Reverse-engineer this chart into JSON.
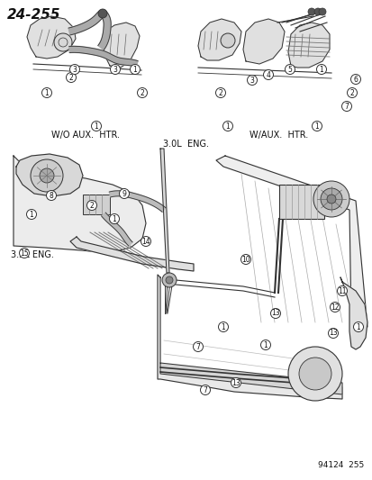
{
  "title": "24-255",
  "bg_color": "#ffffff",
  "fig_width": 4.14,
  "fig_height": 5.33,
  "dpi": 100,
  "labels": {
    "top_left_caption": "W/O AUX.  HTR.",
    "top_right_caption": "W/AUX.  HTR.",
    "middle_caption": "3.0L  ENG.",
    "bottom_left_caption": "3.3L ENG.",
    "bottom_right_stamp": "94124  255"
  },
  "title_fontsize": 11,
  "title_fontweight": "bold",
  "caption_fontsize": 7.0,
  "stamp_fontsize": 6.5,
  "text_color": "#111111",
  "line_color": "#333333",
  "callout_r": 5.5,
  "callout_fontsize": 5.5,
  "top_left_callouts": [
    [
      150,
      456,
      "1"
    ],
    [
      52,
      430,
      "1"
    ],
    [
      107,
      393,
      "1"
    ],
    [
      79,
      447,
      "2"
    ],
    [
      158,
      430,
      "2"
    ],
    [
      83,
      456,
      "3"
    ],
    [
      128,
      456,
      "3"
    ]
  ],
  "top_right_callouts": [
    [
      357,
      456,
      "1"
    ],
    [
      352,
      393,
      "1"
    ],
    [
      253,
      393,
      "1"
    ],
    [
      391,
      430,
      "2"
    ],
    [
      245,
      430,
      "2"
    ],
    [
      280,
      444,
      "3"
    ],
    [
      298,
      450,
      "4"
    ],
    [
      322,
      456,
      "5"
    ],
    [
      395,
      445,
      "6"
    ],
    [
      385,
      415,
      "7"
    ]
  ],
  "bottom_callouts": [
    [
      35,
      295,
      "1"
    ],
    [
      127,
      290,
      "1"
    ],
    [
      248,
      170,
      "1"
    ],
    [
      295,
      150,
      "1"
    ],
    [
      398,
      170,
      "1"
    ],
    [
      102,
      305,
      "2"
    ],
    [
      220,
      148,
      "7"
    ],
    [
      228,
      100,
      "7"
    ],
    [
      57,
      316,
      "8"
    ],
    [
      138,
      318,
      "9"
    ],
    [
      273,
      245,
      "10"
    ],
    [
      380,
      210,
      "11"
    ],
    [
      372,
      192,
      "12"
    ],
    [
      306,
      185,
      "13"
    ],
    [
      370,
      163,
      "13"
    ],
    [
      262,
      108,
      "13"
    ],
    [
      162,
      265,
      "14"
    ],
    [
      27,
      252,
      "15"
    ]
  ]
}
